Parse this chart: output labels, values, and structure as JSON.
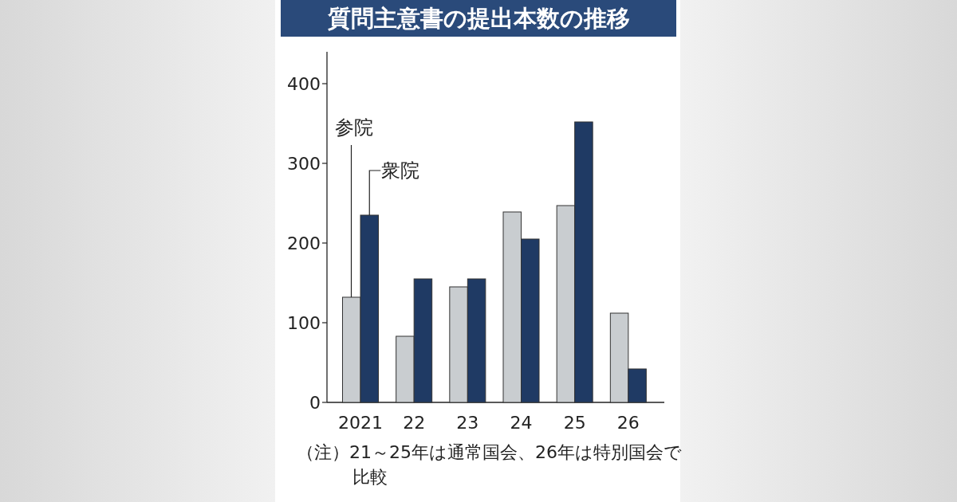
{
  "chart_data": {
    "type": "bar",
    "title": "質問主意書の提出本数の推移",
    "categories": [
      "2021",
      "22",
      "23",
      "24",
      "25",
      "26"
    ],
    "series": [
      {
        "name": "参院",
        "color": "#c9cdd0",
        "values": [
          132,
          83,
          145,
          239,
          247,
          112
        ]
      },
      {
        "name": "衆院",
        "color": "#1f3a64",
        "values": [
          235,
          155,
          155,
          205,
          352,
          42
        ]
      }
    ],
    "ylim": [
      0,
      440
    ],
    "yticks": [
      0,
      100,
      200,
      300,
      400
    ],
    "annotations": [
      "（注）21～25年は通常国会、26年は特別国会で比較"
    ]
  }
}
